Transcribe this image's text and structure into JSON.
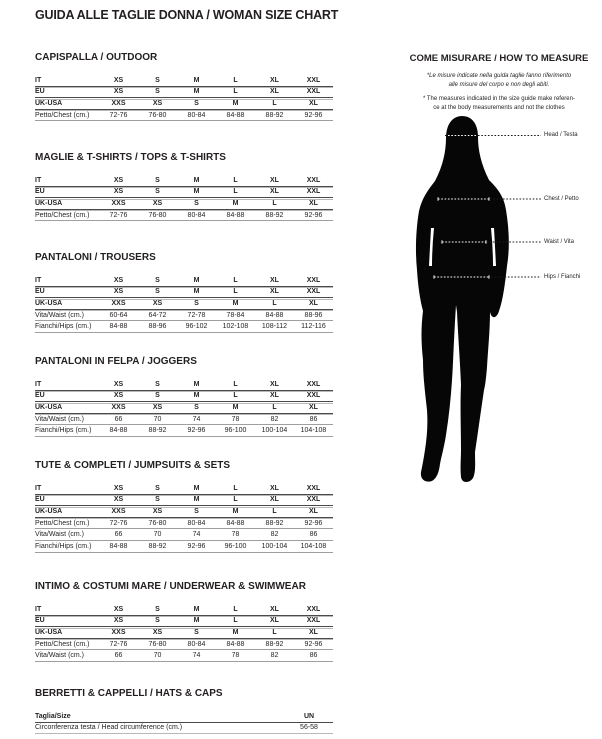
{
  "page": {
    "title": "GUIDA ALLE TAGLIE DONNA / WOMAN SIZE CHART"
  },
  "colors": {
    "text": "#231f20",
    "rule_dark": "#4a4a4a",
    "rule_light": "#b8b8b8",
    "silhouette": "#060606"
  },
  "tables": [
    {
      "heading": "CAPISPALLA / OUTDOOR",
      "size_rows": [
        {
          "label": "IT",
          "values": [
            "XS",
            "S",
            "M",
            "L",
            "XL",
            "XXL"
          ]
        },
        {
          "label": "EU",
          "values": [
            "XS",
            "S",
            "M",
            "L",
            "XL",
            "XXL"
          ]
        },
        {
          "label": "UK-USA",
          "values": [
            "XXS",
            "XS",
            "S",
            "M",
            "L",
            "XL"
          ]
        }
      ],
      "measure_rows": [
        {
          "label": "Petto/Chest (cm.)",
          "values": [
            "72-76",
            "76-80",
            "80-84",
            "84-88",
            "88-92",
            "92-96"
          ]
        }
      ]
    },
    {
      "heading": "MAGLIE & T-SHIRTS / TOPS & T-SHIRTS",
      "size_rows": [
        {
          "label": "IT",
          "values": [
            "XS",
            "S",
            "M",
            "L",
            "XL",
            "XXL"
          ]
        },
        {
          "label": "EU",
          "values": [
            "XS",
            "S",
            "M",
            "L",
            "XL",
            "XXL"
          ]
        },
        {
          "label": "UK-USA",
          "values": [
            "XXS",
            "XS",
            "S",
            "M",
            "L",
            "XL"
          ]
        }
      ],
      "measure_rows": [
        {
          "label": "Petto/Chest (cm.)",
          "values": [
            "72-76",
            "76-80",
            "80-84",
            "84-88",
            "88-92",
            "92-96"
          ]
        }
      ]
    },
    {
      "heading": "PANTALONI / TROUSERS",
      "size_rows": [
        {
          "label": "IT",
          "values": [
            "XS",
            "S",
            "M",
            "L",
            "XL",
            "XXL"
          ]
        },
        {
          "label": "EU",
          "values": [
            "XS",
            "S",
            "M",
            "L",
            "XL",
            "XXL"
          ]
        },
        {
          "label": "UK-USA",
          "values": [
            "XXS",
            "XS",
            "S",
            "M",
            "L",
            "XL"
          ]
        }
      ],
      "measure_rows": [
        {
          "label": "Vita/Waist (cm.)",
          "values": [
            "60-64",
            "64-72",
            "72-78",
            "78-84",
            "84-88",
            "88-96"
          ]
        },
        {
          "label": "Fianchi/Hips (cm.)",
          "values": [
            "84-88",
            "88-96",
            "96-102",
            "102-108",
            "108-112",
            "112-116"
          ]
        }
      ]
    },
    {
      "heading": "PANTALONI IN FELPA / JOGGERS",
      "size_rows": [
        {
          "label": "IT",
          "values": [
            "XS",
            "S",
            "M",
            "L",
            "XL",
            "XXL"
          ]
        },
        {
          "label": "EU",
          "values": [
            "XS",
            "S",
            "M",
            "L",
            "XL",
            "XXL"
          ]
        },
        {
          "label": "UK-USA",
          "values": [
            "XXS",
            "XS",
            "S",
            "M",
            "L",
            "XL"
          ]
        }
      ],
      "measure_rows": [
        {
          "label": "Vita/Waist (cm.)",
          "values": [
            "66",
            "70",
            "74",
            "78",
            "82",
            "86"
          ]
        },
        {
          "label": "Fianchi/Hips (cm.)",
          "values": [
            "84-88",
            "88-92",
            "92-96",
            "96-100",
            "100-104",
            "104-108"
          ]
        }
      ]
    },
    {
      "heading": "TUTE & COMPLETI / JUMPSUITS & SETS",
      "size_rows": [
        {
          "label": "IT",
          "values": [
            "XS",
            "S",
            "M",
            "L",
            "XL",
            "XXL"
          ]
        },
        {
          "label": "EU",
          "values": [
            "XS",
            "S",
            "M",
            "L",
            "XL",
            "XXL"
          ]
        },
        {
          "label": "UK-USA",
          "values": [
            "XXS",
            "XS",
            "S",
            "M",
            "L",
            "XL"
          ]
        }
      ],
      "measure_rows": [
        {
          "label": "Petto/Chest (cm.)",
          "values": [
            "72-76",
            "76-80",
            "80-84",
            "84-88",
            "88-92",
            "92-96"
          ]
        },
        {
          "label": "Vita/Waist (cm.)",
          "values": [
            "66",
            "70",
            "74",
            "78",
            "82",
            "86"
          ]
        },
        {
          "label": "Fianchi/Hips (cm.)",
          "values": [
            "84-88",
            "88-92",
            "92-96",
            "96-100",
            "100-104",
            "104-108"
          ]
        }
      ]
    },
    {
      "heading": "INTIMO & COSTUMI MARE / UNDERWEAR & SWIMWEAR",
      "size_rows": [
        {
          "label": "IT",
          "values": [
            "XS",
            "S",
            "M",
            "L",
            "XL",
            "XXL"
          ]
        },
        {
          "label": "EU",
          "values": [
            "XS",
            "S",
            "M",
            "L",
            "XL",
            "XXL"
          ]
        },
        {
          "label": "UK-USA",
          "values": [
            "XXS",
            "XS",
            "S",
            "M",
            "L",
            "XL"
          ]
        }
      ],
      "measure_rows": [
        {
          "label": "Petto/Chest (cm.)",
          "values": [
            "72-76",
            "76-80",
            "80-84",
            "84-88",
            "88-92",
            "92-96"
          ]
        },
        {
          "label": "Vita/Waist (cm.)",
          "values": [
            "66",
            "70",
            "74",
            "78",
            "82",
            "86"
          ]
        }
      ]
    }
  ],
  "hats": {
    "heading": "BERRETTI & CAPPELLI / HATS & CAPS",
    "col_label": "Taglia/Size",
    "col_un": "UN",
    "row_label": "Circonferenza testa / Head circumference (cm.)",
    "row_value": "56-58"
  },
  "measure": {
    "heading": "COME MISURARE / HOW TO MEASURE",
    "note_it": [
      "*Le misure indicate nella guida taglie fanno riferimento",
      "alle misure del corpo e non degli abiti."
    ],
    "note_en": [
      "* The measures indicated in the size guide make referen-",
      "ce at the body measurements and not the clothes"
    ],
    "labels": [
      "Head / Testa",
      "Chest / Petto",
      "Waist / Vita",
      "Hips / Fianchi"
    ]
  }
}
